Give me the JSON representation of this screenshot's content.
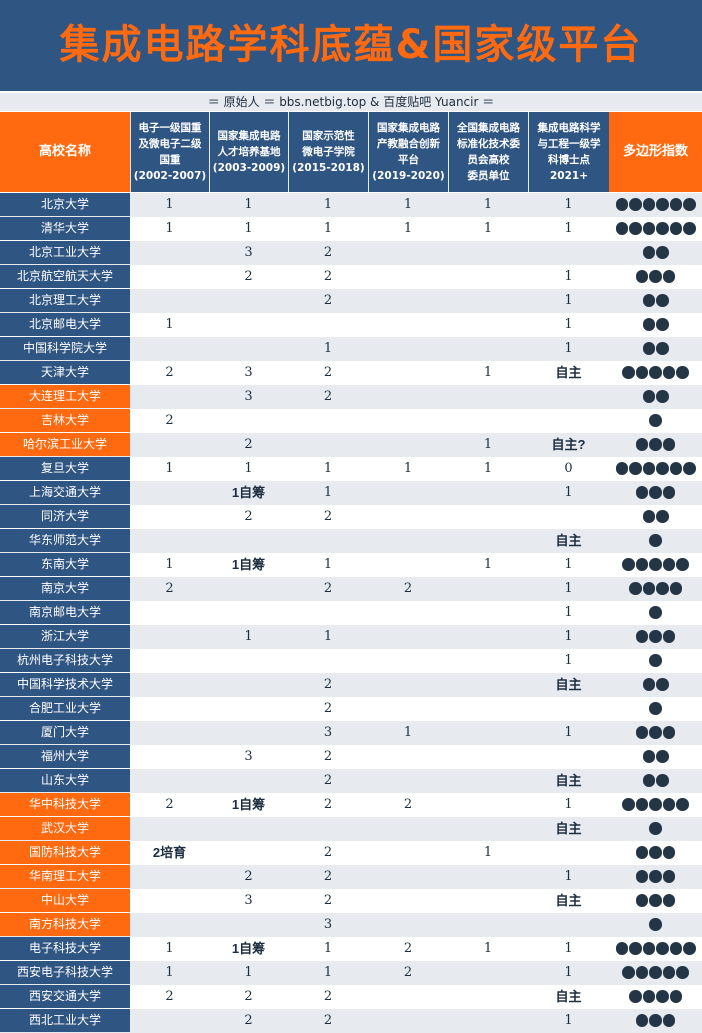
{
  "title": "集成电路学科底蕴&国家级平台",
  "credit": "＝ 原始人 ＝ bbs.netbig.top & 百度贴吧 Yuancir ＝",
  "colors": {
    "banner": "#2f5583",
    "title": "#ff6a10",
    "nameBlue": "#2f5583",
    "nameOrange": "#ff6a10",
    "altRow": "#e7ebf0",
    "dot": "#243546"
  },
  "chart_data": {
    "type": "table",
    "columns": [
      "高校名称",
      "电子一级国重\n及微电子二级\n国重\n(2002-2007)",
      "国家集成电路\n人才培养基地\n(2003-2009)",
      "国家示范性\n微电子学院\n(2015-2018)",
      "国家集成电路\n产教融合创新\n平台\n(2019-2020)",
      "全国集成电路\n标准化技术委\n员会高校\n委员单位",
      "集成电路科学\n与工程一级学\n科博士点\n2021+",
      "多边形指数"
    ],
    "rows": [
      {
        "name": "北京大学",
        "tone": "blue",
        "c1": "1",
        "c2": "1",
        "c3": "1",
        "c4": "1",
        "c5": "1",
        "c6": "1",
        "index": 6
      },
      {
        "name": "清华大学",
        "tone": "blue",
        "c1": "1",
        "c2": "1",
        "c3": "1",
        "c4": "1",
        "c5": "1",
        "c6": "1",
        "index": 6
      },
      {
        "name": "北京工业大学",
        "tone": "blue",
        "c1": "",
        "c2": "3",
        "c3": "2",
        "c4": "",
        "c5": "",
        "c6": "",
        "index": 2
      },
      {
        "name": "北京航空航天大学",
        "tone": "blue",
        "c1": "",
        "c2": "2",
        "c3": "2",
        "c4": "",
        "c5": "",
        "c6": "1",
        "index": 3
      },
      {
        "name": "北京理工大学",
        "tone": "blue",
        "c1": "",
        "c2": "",
        "c3": "2",
        "c4": "",
        "c5": "",
        "c6": "1",
        "index": 2
      },
      {
        "name": "北京邮电大学",
        "tone": "blue",
        "c1": "1",
        "c2": "",
        "c3": "",
        "c4": "",
        "c5": "",
        "c6": "1",
        "index": 2
      },
      {
        "name": "中国科学院大学",
        "tone": "blue",
        "c1": "",
        "c2": "",
        "c3": "1",
        "c4": "",
        "c5": "",
        "c6": "1",
        "index": 2
      },
      {
        "name": "天津大学",
        "tone": "blue",
        "c1": "2",
        "c2": "3",
        "c3": "2",
        "c4": "",
        "c5": "1",
        "c6": "自主",
        "index": 5
      },
      {
        "name": "大连理工大学",
        "tone": "orange",
        "c1": "",
        "c2": "3",
        "c3": "2",
        "c4": "",
        "c5": "",
        "c6": "",
        "index": 2
      },
      {
        "name": "吉林大学",
        "tone": "orange",
        "c1": "2",
        "c2": "",
        "c3": "",
        "c4": "",
        "c5": "",
        "c6": "",
        "index": 1
      },
      {
        "name": "哈尔滨工业大学",
        "tone": "orange",
        "c1": "",
        "c2": "2",
        "c3": "",
        "c4": "",
        "c5": "1",
        "c6": "自主?",
        "index": 3
      },
      {
        "name": "复旦大学",
        "tone": "blue",
        "c1": "1",
        "c2": "1",
        "c3": "1",
        "c4": "1",
        "c5": "1",
        "c6": "0",
        "index": 6
      },
      {
        "name": "上海交通大学",
        "tone": "blue",
        "c1": "",
        "c2": "1自筹",
        "c3": "1",
        "c4": "",
        "c5": "",
        "c6": "1",
        "index": 3
      },
      {
        "name": "同济大学",
        "tone": "blue",
        "c1": "",
        "c2": "2",
        "c3": "2",
        "c4": "",
        "c5": "",
        "c6": "",
        "index": 2
      },
      {
        "name": "华东师范大学",
        "tone": "blue",
        "c1": "",
        "c2": "",
        "c3": "",
        "c4": "",
        "c5": "",
        "c6": "自主",
        "index": 1
      },
      {
        "name": "东南大学",
        "tone": "blue",
        "c1": "1",
        "c2": "1自筹",
        "c3": "1",
        "c4": "",
        "c5": "1",
        "c6": "1",
        "index": 5
      },
      {
        "name": "南京大学",
        "tone": "blue",
        "c1": "2",
        "c2": "",
        "c3": "2",
        "c4": "2",
        "c5": "",
        "c6": "1",
        "index": 4
      },
      {
        "name": "南京邮电大学",
        "tone": "blue",
        "c1": "",
        "c2": "",
        "c3": "",
        "c4": "",
        "c5": "",
        "c6": "1",
        "index": 1
      },
      {
        "name": "浙江大学",
        "tone": "blue",
        "c1": "",
        "c2": "1",
        "c3": "1",
        "c4": "",
        "c5": "",
        "c6": "1",
        "index": 3
      },
      {
        "name": "杭州电子科技大学",
        "tone": "blue",
        "c1": "",
        "c2": "",
        "c3": "",
        "c4": "",
        "c5": "",
        "c6": "1",
        "index": 1
      },
      {
        "name": "中国科学技术大学",
        "tone": "blue",
        "c1": "",
        "c2": "",
        "c3": "2",
        "c4": "",
        "c5": "",
        "c6": "自主",
        "index": 2
      },
      {
        "name": "合肥工业大学",
        "tone": "blue",
        "c1": "",
        "c2": "",
        "c3": "2",
        "c4": "",
        "c5": "",
        "c6": "",
        "index": 1
      },
      {
        "name": "厦门大学",
        "tone": "blue",
        "c1": "",
        "c2": "",
        "c3": "3",
        "c4": "1",
        "c5": "",
        "c6": "1",
        "index": 3
      },
      {
        "name": "福州大学",
        "tone": "blue",
        "c1": "",
        "c2": "3",
        "c3": "2",
        "c4": "",
        "c5": "",
        "c6": "",
        "index": 2
      },
      {
        "name": "山东大学",
        "tone": "blue",
        "c1": "",
        "c2": "",
        "c3": "2",
        "c4": "",
        "c5": "",
        "c6": "自主",
        "index": 2
      },
      {
        "name": "华中科技大学",
        "tone": "orange",
        "c1": "2",
        "c2": "1自筹",
        "c3": "2",
        "c4": "2",
        "c5": "",
        "c6": "1",
        "index": 5
      },
      {
        "name": "武汉大学",
        "tone": "orange",
        "c1": "",
        "c2": "",
        "c3": "",
        "c4": "",
        "c5": "",
        "c6": "自主",
        "index": 1
      },
      {
        "name": "国防科技大学",
        "tone": "orange",
        "c1": "2培育",
        "c2": "",
        "c3": "2",
        "c4": "",
        "c5": "1",
        "c6": "",
        "index": 3
      },
      {
        "name": "华南理工大学",
        "tone": "orange",
        "c1": "",
        "c2": "2",
        "c3": "2",
        "c4": "",
        "c5": "",
        "c6": "1",
        "index": 3
      },
      {
        "name": "中山大学",
        "tone": "orange",
        "c1": "",
        "c2": "3",
        "c3": "2",
        "c4": "",
        "c5": "",
        "c6": "自主",
        "index": 3
      },
      {
        "name": "南方科技大学",
        "tone": "orange",
        "c1": "",
        "c2": "",
        "c3": "3",
        "c4": "",
        "c5": "",
        "c6": "",
        "index": 1
      },
      {
        "name": "电子科技大学",
        "tone": "blue",
        "c1": "1",
        "c2": "1自筹",
        "c3": "1",
        "c4": "2",
        "c5": "1",
        "c6": "1",
        "index": 6
      },
      {
        "name": "西安电子科技大学",
        "tone": "blue",
        "c1": "1",
        "c2": "1",
        "c3": "1",
        "c4": "2",
        "c5": "",
        "c6": "1",
        "index": 5
      },
      {
        "name": "西安交通大学",
        "tone": "blue",
        "c1": "2",
        "c2": "2",
        "c3": "2",
        "c4": "",
        "c5": "",
        "c6": "自主",
        "index": 4
      },
      {
        "name": "西北工业大学",
        "tone": "blue",
        "c1": "",
        "c2": "2",
        "c3": "2",
        "c4": "",
        "c5": "",
        "c6": "1",
        "index": 3
      }
    ]
  }
}
